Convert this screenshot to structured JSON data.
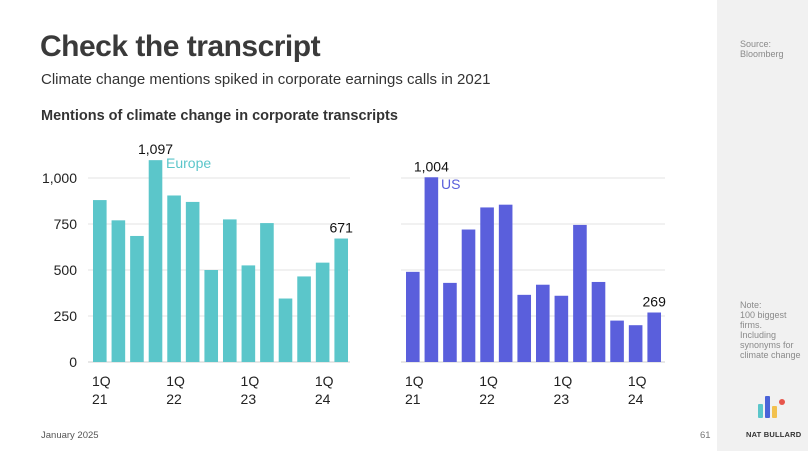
{
  "header": {
    "title": "Check the transcript",
    "subtitle": "Climate change mentions spiked in corporate earnings calls in 2021",
    "chart_heading": "Mentions of climate change in corporate transcripts"
  },
  "sidebar": {
    "source": [
      "Source:",
      "Bloomberg"
    ],
    "note": [
      "Note:",
      "100 biggest",
      "firms.",
      "Including",
      "synonyms for",
      "climate change"
    ]
  },
  "footer": {
    "date": "January 2025",
    "page": "61",
    "brand": "NAT BULLARD"
  },
  "colors": {
    "europe": "#5bc6ca",
    "us": "#5a5fdc",
    "logo_blue": "#4a63d8",
    "logo_teal": "#5bc6ca",
    "logo_red": "#e7554b",
    "logo_yellow": "#f2c14e"
  },
  "chart_data": [
    {
      "type": "bar",
      "series_label": "Europe",
      "y_ticks": [
        "0",
        "250",
        "500",
        "750",
        "1,000"
      ],
      "y_tick_values": [
        0,
        250,
        500,
        750,
        1000
      ],
      "ylim": [
        0,
        1000
      ],
      "grid": true,
      "x_tick_labels": [
        {
          "index": 0,
          "line1": "1Q",
          "line2": "21"
        },
        {
          "index": 4,
          "line1": "1Q",
          "line2": "22"
        },
        {
          "index": 8,
          "line1": "1Q",
          "line2": "23"
        },
        {
          "index": 12,
          "line1": "1Q",
          "line2": "24"
        }
      ],
      "values": [
        880,
        770,
        685,
        1097,
        905,
        870,
        500,
        775,
        525,
        755,
        345,
        465,
        540,
        671
      ],
      "data_labels": [
        {
          "index": 3,
          "text": "1,097"
        },
        {
          "index": 13,
          "text": "671"
        }
      ]
    },
    {
      "type": "bar",
      "series_label": "US",
      "ylim": [
        0,
        1000
      ],
      "grid": true,
      "x_tick_labels": [
        {
          "index": 0,
          "line1": "1Q",
          "line2": "21"
        },
        {
          "index": 4,
          "line1": "1Q",
          "line2": "22"
        },
        {
          "index": 8,
          "line1": "1Q",
          "line2": "23"
        },
        {
          "index": 12,
          "line1": "1Q",
          "line2": "24"
        }
      ],
      "values": [
        490,
        1004,
        430,
        720,
        840,
        855,
        365,
        420,
        360,
        745,
        435,
        225,
        200,
        269
      ],
      "data_labels": [
        {
          "index": 1,
          "text": "1,004"
        },
        {
          "index": 13,
          "text": "269"
        }
      ]
    }
  ]
}
